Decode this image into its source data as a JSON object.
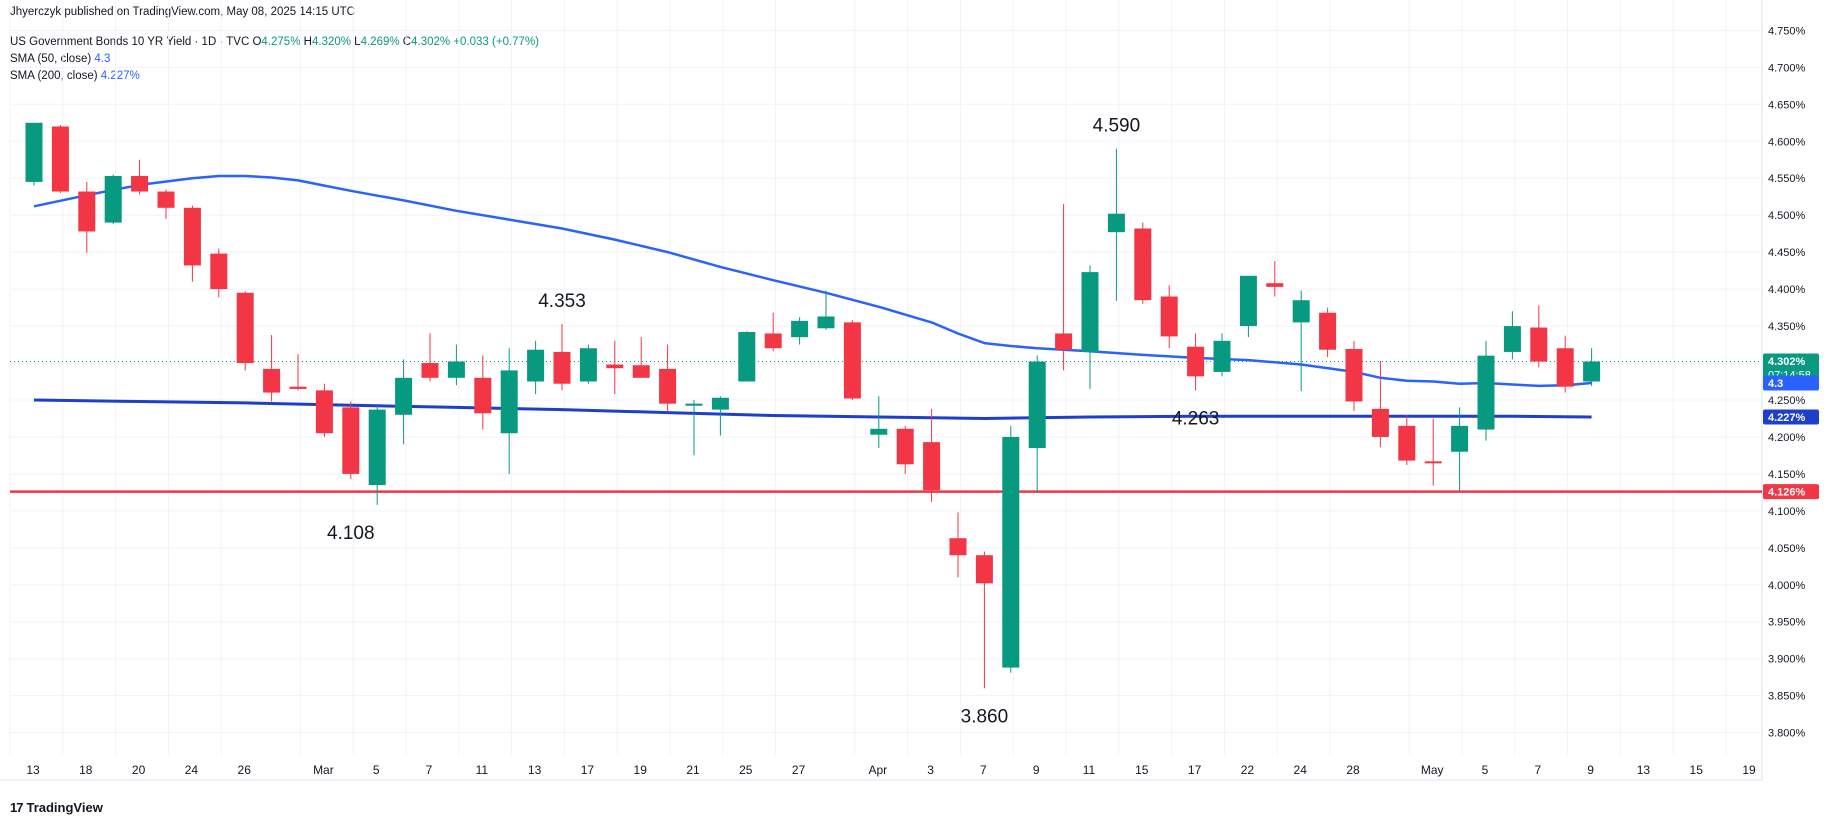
{
  "header": {
    "publisher": "Jhyerczyk published on TradingView.com, May 08, 2025 14:15 UTC",
    "symbol": "US Government Bonds 10 YR Yield · 1D · TVC",
    "o_label": "O",
    "o_value": "4.275%",
    "h_label": "H",
    "h_value": "4.320%",
    "l_label": "L",
    "l_value": "4.269%",
    "c_label": "C",
    "c_value": "4.302%",
    "change": "+0.033 (+0.77%)",
    "sma50_label": "SMA (50, close)",
    "sma50_value": "4.3",
    "sma200_label": "SMA (200, close)",
    "sma200_value": "4.227%"
  },
  "footer": {
    "brand": "TradingView"
  },
  "colors": {
    "up": "#089981",
    "down": "#f23645",
    "sma50": "#2962ff",
    "sma200": "#1e3fcc",
    "support": "#f23645"
  },
  "chart_data": {
    "type": "candlestick",
    "ylim": [
      3.77,
      4.76
    ],
    "y_ticks": [
      "4.750%",
      "4.700%",
      "4.650%",
      "4.600%",
      "4.550%",
      "4.500%",
      "4.450%",
      "4.400%",
      "4.350%",
      "4.300%",
      "4.250%",
      "4.200%",
      "4.150%",
      "4.100%",
      "4.050%",
      "4.000%",
      "3.950%",
      "3.900%",
      "3.850%",
      "3.800%"
    ],
    "x_ticks": [
      {
        "label": "13",
        "i": 0
      },
      {
        "label": "18",
        "i": 2
      },
      {
        "label": "20",
        "i": 4
      },
      {
        "label": "24",
        "i": 6
      },
      {
        "label": "26",
        "i": 8
      },
      {
        "label": "Mar",
        "i": 11
      },
      {
        "label": "5",
        "i": 13
      },
      {
        "label": "7",
        "i": 15
      },
      {
        "label": "11",
        "i": 17
      },
      {
        "label": "13",
        "i": 19
      },
      {
        "label": "17",
        "i": 21
      },
      {
        "label": "19",
        "i": 23
      },
      {
        "label": "21",
        "i": 25
      },
      {
        "label": "25",
        "i": 27
      },
      {
        "label": "27",
        "i": 29
      },
      {
        "label": "Apr",
        "i": 32
      },
      {
        "label": "3",
        "i": 34
      },
      {
        "label": "7",
        "i": 36
      },
      {
        "label": "9",
        "i": 38
      },
      {
        "label": "11",
        "i": 40
      },
      {
        "label": "15",
        "i": 42
      },
      {
        "label": "17",
        "i": 44
      },
      {
        "label": "22",
        "i": 46
      },
      {
        "label": "24",
        "i": 48
      },
      {
        "label": "28",
        "i": 50
      },
      {
        "label": "May",
        "i": 53
      },
      {
        "label": "5",
        "i": 55
      },
      {
        "label": "7",
        "i": 57
      },
      {
        "label": "9",
        "i": 59
      },
      {
        "label": "13",
        "i": 61
      },
      {
        "label": "15",
        "i": 63
      },
      {
        "label": "19",
        "i": 65
      }
    ],
    "candles": [
      {
        "o": 4.545,
        "h": 4.625,
        "l": 4.54,
        "c": 4.625
      },
      {
        "o": 4.62,
        "h": 4.622,
        "l": 4.53,
        "c": 4.532
      },
      {
        "o": 4.532,
        "h": 4.545,
        "l": 4.449,
        "c": 4.478
      },
      {
        "o": 4.49,
        "h": 4.555,
        "l": 4.488,
        "c": 4.553
      },
      {
        "o": 4.553,
        "h": 4.575,
        "l": 4.528,
        "c": 4.532
      },
      {
        "o": 4.532,
        "h": 4.535,
        "l": 4.495,
        "c": 4.51
      },
      {
        "o": 4.51,
        "h": 4.513,
        "l": 4.41,
        "c": 4.432
      },
      {
        "o": 4.448,
        "h": 4.455,
        "l": 4.389,
        "c": 4.4
      },
      {
        "o": 4.395,
        "h": 4.397,
        "l": 4.29,
        "c": 4.3
      },
      {
        "o": 4.292,
        "h": 4.338,
        "l": 4.248,
        "c": 4.26
      },
      {
        "o": 4.268,
        "h": 4.312,
        "l": 4.263,
        "c": 4.265
      },
      {
        "o": 4.263,
        "h": 4.272,
        "l": 4.2,
        "c": 4.205
      },
      {
        "o": 4.24,
        "h": 4.248,
        "l": 4.143,
        "c": 4.15
      },
      {
        "o": 4.135,
        "h": 4.242,
        "l": 4.108,
        "c": 4.237
      },
      {
        "o": 4.23,
        "h": 4.305,
        "l": 4.19,
        "c": 4.28
      },
      {
        "o": 4.3,
        "h": 4.34,
        "l": 4.275,
        "c": 4.28
      },
      {
        "o": 4.28,
        "h": 4.325,
        "l": 4.27,
        "c": 4.302
      },
      {
        "o": 4.28,
        "h": 4.31,
        "l": 4.21,
        "c": 4.232
      },
      {
        "o": 4.205,
        "h": 4.32,
        "l": 4.15,
        "c": 4.29
      },
      {
        "o": 4.275,
        "h": 4.33,
        "l": 4.258,
        "c": 4.318
      },
      {
        "o": 4.315,
        "h": 4.353,
        "l": 4.263,
        "c": 4.272
      },
      {
        "o": 4.275,
        "h": 4.325,
        "l": 4.272,
        "c": 4.32
      },
      {
        "o": 4.298,
        "h": 4.33,
        "l": 4.258,
        "c": 4.293
      },
      {
        "o": 4.297,
        "h": 4.335,
        "l": 4.282,
        "c": 4.28
      },
      {
        "o": 4.292,
        "h": 4.325,
        "l": 4.235,
        "c": 4.245
      },
      {
        "o": 4.245,
        "h": 4.25,
        "l": 4.175,
        "c": 4.245
      },
      {
        "o": 4.237,
        "h": 4.255,
        "l": 4.202,
        "c": 4.253
      },
      {
        "o": 4.275,
        "h": 4.343,
        "l": 4.275,
        "c": 4.342
      },
      {
        "o": 4.34,
        "h": 4.368,
        "l": 4.316,
        "c": 4.32
      },
      {
        "o": 4.335,
        "h": 4.362,
        "l": 4.325,
        "c": 4.357
      },
      {
        "o": 4.347,
        "h": 4.398,
        "l": 4.345,
        "c": 4.363
      },
      {
        "o": 4.355,
        "h": 4.358,
        "l": 4.25,
        "c": 4.252
      },
      {
        "o": 4.203,
        "h": 4.255,
        "l": 4.185,
        "c": 4.211
      },
      {
        "o": 4.211,
        "h": 4.215,
        "l": 4.15,
        "c": 4.163
      },
      {
        "o": 4.193,
        "h": 4.238,
        "l": 4.112,
        "c": 4.128
      },
      {
        "o": 4.063,
        "h": 4.098,
        "l": 4.01,
        "c": 4.04
      },
      {
        "o": 4.04,
        "h": 4.045,
        "l": 3.86,
        "c": 4.002
      },
      {
        "o": 3.888,
        "h": 4.215,
        "l": 3.881,
        "c": 4.2
      },
      {
        "o": 4.185,
        "h": 4.31,
        "l": 4.124,
        "c": 4.302
      },
      {
        "o": 4.34,
        "h": 4.515,
        "l": 4.29,
        "c": 4.318
      },
      {
        "o": 4.315,
        "h": 4.432,
        "l": 4.265,
        "c": 4.423
      },
      {
        "o": 4.477,
        "h": 4.59,
        "l": 4.384,
        "c": 4.502
      },
      {
        "o": 4.482,
        "h": 4.49,
        "l": 4.38,
        "c": 4.385
      },
      {
        "o": 4.39,
        "h": 4.405,
        "l": 4.32,
        "c": 4.336
      },
      {
        "o": 4.322,
        "h": 4.34,
        "l": 4.263,
        "c": 4.282
      },
      {
        "o": 4.288,
        "h": 4.34,
        "l": 4.282,
        "c": 4.33
      },
      {
        "o": 4.35,
        "h": 4.418,
        "l": 4.335,
        "c": 4.418
      },
      {
        "o": 4.408,
        "h": 4.438,
        "l": 4.39,
        "c": 4.403
      },
      {
        "o": 4.355,
        "h": 4.398,
        "l": 4.262,
        "c": 4.385
      },
      {
        "o": 4.368,
        "h": 4.375,
        "l": 4.308,
        "c": 4.318
      },
      {
        "o": 4.319,
        "h": 4.33,
        "l": 4.235,
        "c": 4.248
      },
      {
        "o": 4.238,
        "h": 4.303,
        "l": 4.186,
        "c": 4.2
      },
      {
        "o": 4.215,
        "h": 4.23,
        "l": 4.162,
        "c": 4.168
      },
      {
        "o": 4.167,
        "h": 4.225,
        "l": 4.134,
        "c": 4.165
      },
      {
        "o": 4.18,
        "h": 4.24,
        "l": 4.127,
        "c": 4.215
      },
      {
        "o": 4.21,
        "h": 4.33,
        "l": 4.195,
        "c": 4.31
      },
      {
        "o": 4.315,
        "h": 4.37,
        "l": 4.305,
        "c": 4.35
      },
      {
        "o": 4.348,
        "h": 4.378,
        "l": 4.294,
        "c": 4.302
      },
      {
        "o": 4.32,
        "h": 4.337,
        "l": 4.26,
        "c": 4.268
      },
      {
        "o": 4.275,
        "h": 4.32,
        "l": 4.269,
        "c": 4.302
      }
    ],
    "sma50": [
      [
        0,
        4.512
      ],
      [
        2,
        4.527
      ],
      [
        4,
        4.541
      ],
      [
        6,
        4.55
      ],
      [
        7,
        4.553
      ],
      [
        8,
        4.553
      ],
      [
        9,
        4.551
      ],
      [
        10,
        4.547
      ],
      [
        11,
        4.54
      ],
      [
        12,
        4.533
      ],
      [
        14,
        4.52
      ],
      [
        16,
        4.506
      ],
      [
        18,
        4.494
      ],
      [
        20,
        4.482
      ],
      [
        22,
        4.467
      ],
      [
        24,
        4.45
      ],
      [
        26,
        4.43
      ],
      [
        28,
        4.412
      ],
      [
        30,
        4.395
      ],
      [
        32,
        4.376
      ],
      [
        34,
        4.355
      ],
      [
        35,
        4.34
      ],
      [
        36,
        4.327
      ],
      [
        37,
        4.323
      ],
      [
        38,
        4.32
      ],
      [
        40,
        4.316
      ],
      [
        42,
        4.311
      ],
      [
        44,
        4.307
      ],
      [
        46,
        4.304
      ],
      [
        48,
        4.298
      ],
      [
        50,
        4.288
      ],
      [
        51,
        4.28
      ],
      [
        52,
        4.276
      ],
      [
        53,
        4.275
      ],
      [
        54,
        4.272
      ],
      [
        55,
        4.273
      ],
      [
        56,
        4.271
      ],
      [
        57,
        4.269
      ],
      [
        58,
        4.27
      ],
      [
        59,
        4.273
      ]
    ],
    "sma200": [
      [
        0,
        4.25
      ],
      [
        4,
        4.248
      ],
      [
        8,
        4.246
      ],
      [
        12,
        4.243
      ],
      [
        16,
        4.24
      ],
      [
        20,
        4.237
      ],
      [
        24,
        4.233
      ],
      [
        28,
        4.229
      ],
      [
        32,
        4.227
      ],
      [
        36,
        4.225
      ],
      [
        40,
        4.227
      ],
      [
        44,
        4.228
      ],
      [
        48,
        4.228
      ],
      [
        52,
        4.228
      ],
      [
        56,
        4.228
      ],
      [
        59,
        4.227
      ]
    ],
    "support_level": 4.126,
    "last_price_line": 4.302,
    "price_labels": [
      {
        "text": "4.302%",
        "sub": "07:14:58",
        "y": 4.302,
        "color": "#089981"
      },
      {
        "text": "4.3",
        "y": 4.273,
        "color": "#2962ff"
      },
      {
        "text": "4.227%",
        "y": 4.227,
        "color": "#1e3fcc"
      },
      {
        "text": "4.126%",
        "y": 4.126,
        "color": "#f23645"
      }
    ],
    "annotations": [
      {
        "text": "4.108",
        "i": 12,
        "y": 4.108,
        "pos": "below"
      },
      {
        "text": "4.353",
        "i": 20,
        "y": 4.353,
        "pos": "above"
      },
      {
        "text": "3.860",
        "i": 36,
        "y": 3.86,
        "pos": "below"
      },
      {
        "text": "4.590",
        "i": 41,
        "y": 4.59,
        "pos": "above"
      },
      {
        "text": "4.263",
        "i": 44,
        "y": 4.263,
        "pos": "below"
      }
    ]
  }
}
